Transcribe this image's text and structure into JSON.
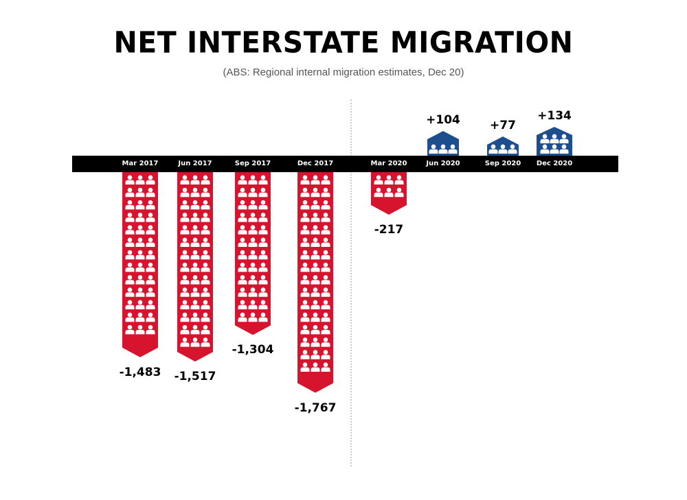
{
  "header": {
    "title": "NET INTERSTATE MIGRATION",
    "subtitle": "(ABS: Regional internal migration estimates, Dec 20)"
  },
  "colors": {
    "negative": "#d7142e",
    "positive": "#1d4f8f",
    "axis": "#000000",
    "icon": "#ffffff"
  },
  "icons": {
    "person": "person-icon"
  },
  "bars": [
    {
      "label": "Mar 2017",
      "value": -1483,
      "display": "-1,483"
    },
    {
      "label": "Jun 2017",
      "value": -1517,
      "display": "-1,517"
    },
    {
      "label": "Sep 2017",
      "value": -1304,
      "display": "-1,304"
    },
    {
      "label": "Dec 2017",
      "value": -1767,
      "display": "-1,767"
    },
    {
      "label": "Mar 2020",
      "value": -217,
      "display": "-217"
    },
    {
      "label": "Jun 2020",
      "value": 104,
      "display": "+104"
    },
    {
      "label": "Sep 2020",
      "value": 77,
      "display": "+77"
    },
    {
      "label": "Dec 2020",
      "value": 134,
      "display": "+134"
    }
  ],
  "chart_data": {
    "type": "bar",
    "title": "NET INTERSTATE MIGRATION",
    "subtitle": "(ABS: Regional internal migration estimates, Dec 20)",
    "categories": [
      "Mar 2017",
      "Jun 2017",
      "Sep 2017",
      "Dec 2017",
      "Mar 2020",
      "Jun 2020",
      "Sep 2020",
      "Dec 2020"
    ],
    "values": [
      -1483,
      -1517,
      -1304,
      -1767,
      -217,
      104,
      77,
      134
    ],
    "data_labels": [
      "-1,483",
      "-1,517",
      "-1,304",
      "-1,767",
      "-217",
      "+104",
      "+77",
      "+134"
    ],
    "xlabel": "",
    "ylabel": "",
    "style": "pictogram bars (person icons), negative bars red hanging below axis, positive bars blue above axis",
    "groups": [
      {
        "name": "2017",
        "categories": [
          "Mar 2017",
          "Jun 2017",
          "Sep 2017",
          "Dec 2017"
        ]
      },
      {
        "name": "2020",
        "categories": [
          "Mar 2020",
          "Jun 2020",
          "Sep 2020",
          "Dec 2020"
        ]
      }
    ],
    "grid": false,
    "legend": null
  }
}
